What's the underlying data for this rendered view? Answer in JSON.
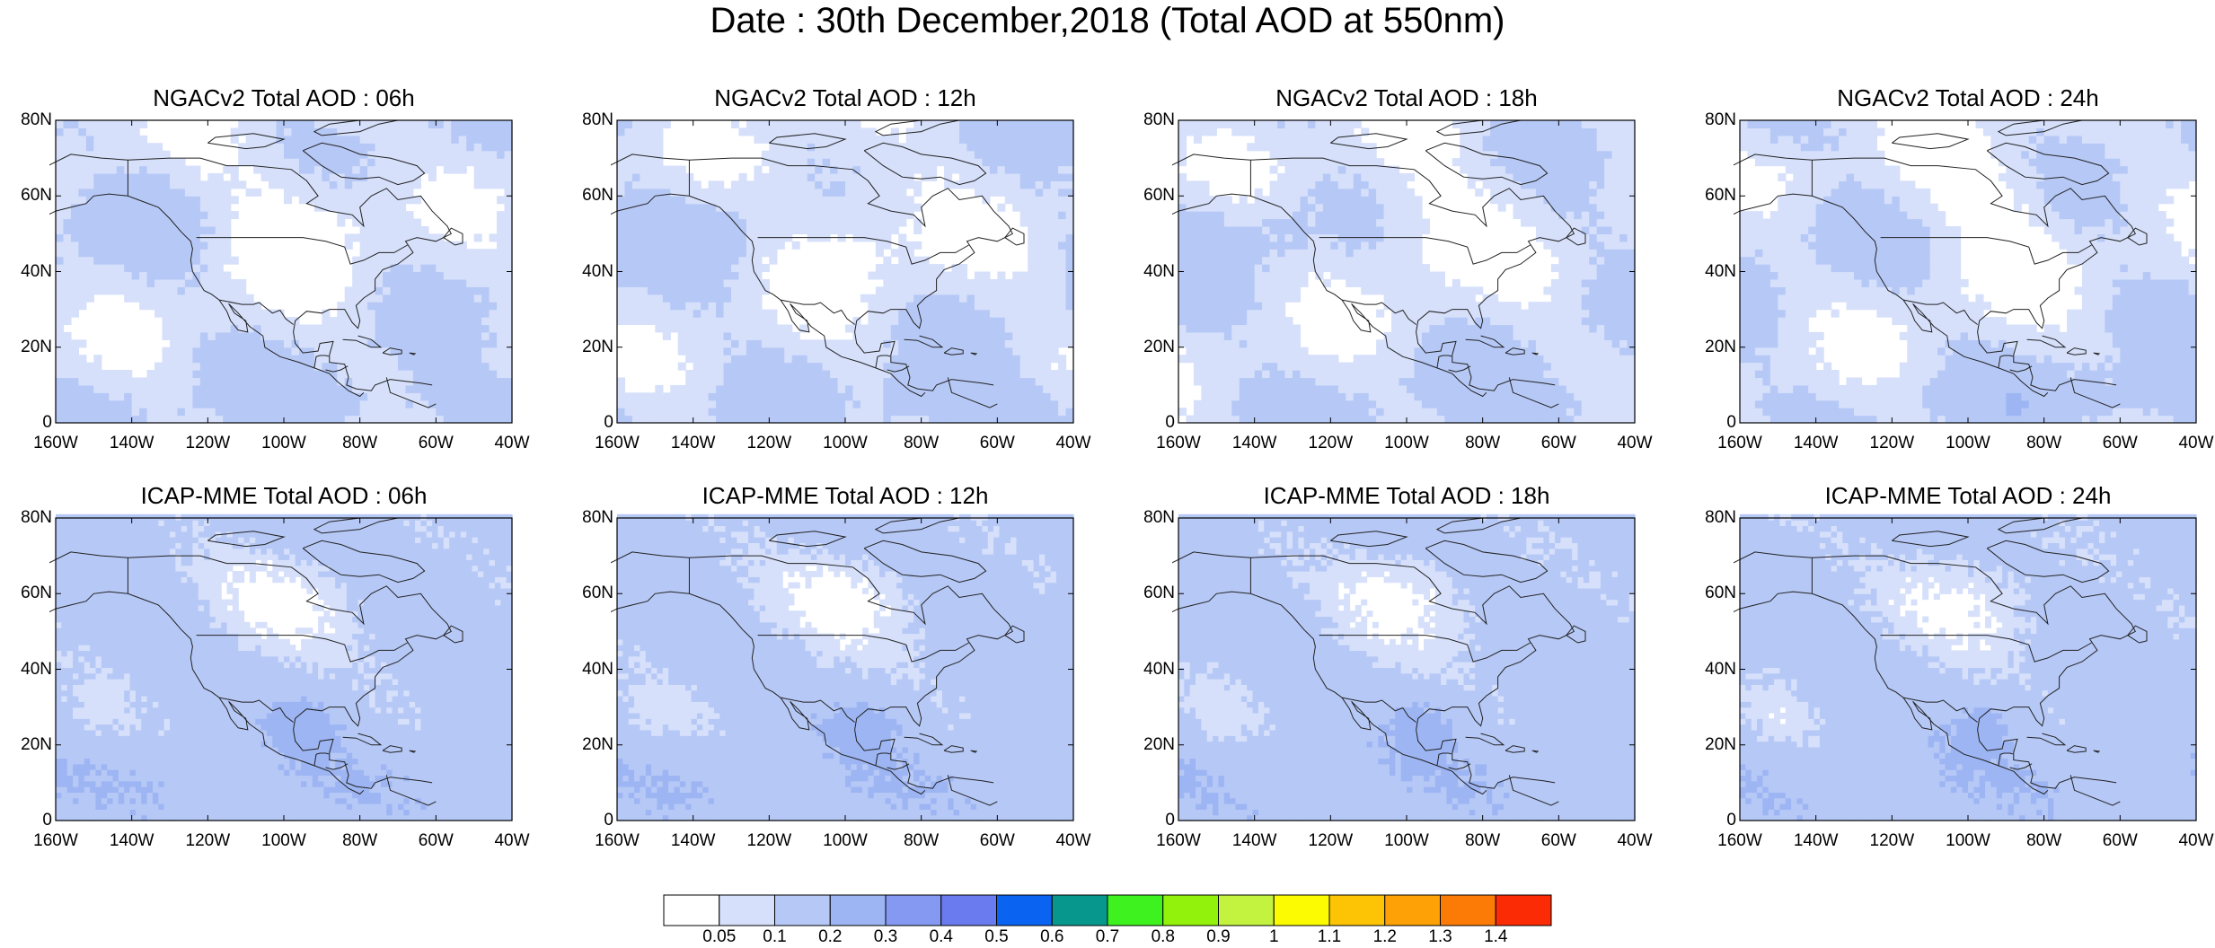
{
  "title": "Date : 30th December,2018 (Total AOD at 550nm)",
  "panels": [
    {
      "title": "NGACv2 Total AOD : 06h",
      "model": "NGACv2",
      "hour": "06h",
      "row": 0,
      "col": 0
    },
    {
      "title": "NGACv2 Total AOD : 12h",
      "model": "NGACv2",
      "hour": "12h",
      "row": 0,
      "col": 1
    },
    {
      "title": "NGACv2 Total AOD : 18h",
      "model": "NGACv2",
      "hour": "18h",
      "row": 0,
      "col": 2
    },
    {
      "title": "NGACv2 Total AOD : 24h",
      "model": "NGACv2",
      "hour": "24h",
      "row": 0,
      "col": 3
    },
    {
      "title": "ICAP-MME Total AOD : 06h",
      "model": "ICAP-MME",
      "hour": "06h",
      "row": 1,
      "col": 0
    },
    {
      "title": "ICAP-MME Total AOD : 12h",
      "model": "ICAP-MME",
      "hour": "12h",
      "row": 1,
      "col": 1
    },
    {
      "title": "ICAP-MME Total AOD : 18h",
      "model": "ICAP-MME",
      "hour": "18h",
      "row": 1,
      "col": 2
    },
    {
      "title": "ICAP-MME Total AOD : 24h",
      "model": "ICAP-MME",
      "hour": "24h",
      "row": 1,
      "col": 3
    }
  ],
  "map_extent": {
    "lon": [
      -160,
      -40
    ],
    "lat": [
      0,
      80
    ]
  },
  "x_ticks": [
    "160W",
    "140W",
    "120W",
    "100W",
    "80W",
    "60W",
    "40W"
  ],
  "y_ticks": [
    "0",
    "20N",
    "40N",
    "60N",
    "80N"
  ],
  "colorbar": {
    "labels": [
      "0.05",
      "0.1",
      "0.2",
      "0.3",
      "0.4",
      "0.5",
      "0.6",
      "0.7",
      "0.8",
      "0.9",
      "1",
      "1.1",
      "1.2",
      "1.3",
      "1.4"
    ],
    "colors": [
      "#ffffff",
      "#d6e0fb",
      "#b6c8f6",
      "#9db5f3",
      "#8599f2",
      "#6a7bef",
      "#0b63f2",
      "#08978c",
      "#3ef220",
      "#93f20b",
      "#c3f33e",
      "#fdfb02",
      "#fdc405",
      "#fda106",
      "#fb7b06",
      "#fb2b05"
    ]
  }
}
